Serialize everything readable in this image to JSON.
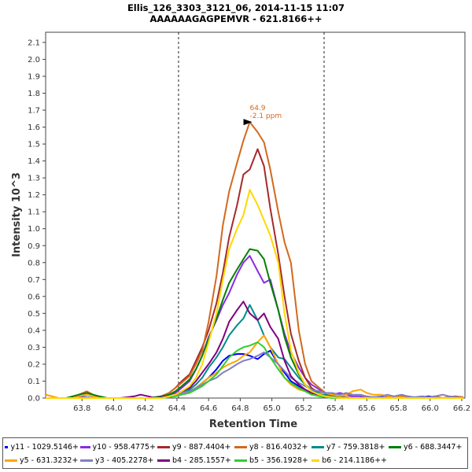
{
  "chart_data": {
    "type": "line",
    "title": "Ellis_126_3303_3121_06, 2014-11-15 11:07",
    "subtitle": "AAAAAAGAGPEMVR - 621.8166++",
    "xlabel": "Retention Time",
    "ylabel": "Intensity 10^3",
    "xlim": [
      63.57,
      66.22
    ],
    "ylim": [
      0,
      2.16
    ],
    "x_ticks": [
      "63.8",
      "64.0",
      "64.2",
      "64.4",
      "64.6",
      "64.8",
      "65.0",
      "65.2",
      "65.4",
      "65.6",
      "65.8",
      "66.0",
      "66.2"
    ],
    "y_ticks": [
      "0.0",
      "0.1",
      "0.2",
      "0.3",
      "0.4",
      "0.5",
      "0.6",
      "0.7",
      "0.8",
      "0.9",
      "1.0",
      "1.1",
      "1.2",
      "1.3",
      "1.4",
      "1.5",
      "1.6",
      "1.7",
      "1.8",
      "1.9",
      "2.0",
      "2.1"
    ],
    "grid": false,
    "legend_position": "bottom",
    "integration_bounds": [
      64.41,
      65.33
    ],
    "annotation": {
      "line1": "64.9",
      "line2": "-2.1 ppm",
      "x": 64.89,
      "y": 1.63
    },
    "x": [
      63.57,
      63.61,
      63.65,
      63.7,
      63.74,
      63.78,
      63.83,
      63.87,
      63.91,
      63.96,
      64.0,
      64.04,
      64.09,
      64.13,
      64.17,
      64.22,
      64.26,
      64.3,
      64.35,
      64.39,
      64.43,
      64.48,
      64.52,
      64.56,
      64.6,
      64.65,
      64.69,
      64.73,
      64.78,
      64.82,
      64.86,
      64.91,
      64.95,
      64.99,
      65.04,
      65.08,
      65.12,
      65.17,
      65.21,
      65.25,
      65.3,
      65.34,
      65.38,
      65.43,
      65.47,
      65.51,
      65.56,
      65.6,
      65.64,
      65.69,
      65.73,
      65.77,
      65.82,
      65.86,
      65.9,
      65.95,
      65.99,
      66.03,
      66.08,
      66.12,
      66.16,
      66.21
    ],
    "series": [
      {
        "name": "y11 - 1029.5146+",
        "color": "#0000ff",
        "values": [
          0,
          0,
          0,
          0,
          0.005,
          0.01,
          0.005,
          0,
          0,
          0,
          0,
          0,
          0,
          0,
          0,
          0,
          0,
          0.005,
          0.01,
          0.02,
          0.03,
          0.04,
          0.06,
          0.09,
          0.12,
          0.17,
          0.22,
          0.25,
          0.26,
          0.26,
          0.25,
          0.23,
          0.26,
          0.28,
          0.2,
          0.15,
          0.1,
          0.07,
          0.05,
          0.03,
          0.02,
          0.015,
          0.01,
          0.005,
          0.005,
          0,
          0,
          0,
          0.005,
          0.005,
          0,
          0,
          0.01,
          0,
          0,
          0.005,
          0.01,
          0.005,
          0,
          0,
          0.005,
          0
        ]
      },
      {
        "name": "y10 - 958.4775+",
        "color": "#8a2be2",
        "values": [
          0,
          0,
          0,
          0,
          0,
          0.01,
          0.005,
          0,
          0,
          0,
          0,
          0,
          0,
          0,
          0,
          0,
          0,
          0.01,
          0.02,
          0.03,
          0.06,
          0.1,
          0.17,
          0.25,
          0.36,
          0.46,
          0.55,
          0.62,
          0.73,
          0.8,
          0.84,
          0.75,
          0.68,
          0.7,
          0.52,
          0.38,
          0.27,
          0.18,
          0.12,
          0.08,
          0.05,
          0.03,
          0.02,
          0.03,
          0.02,
          0.01,
          0.01,
          0,
          0,
          0,
          0.005,
          0.01,
          0,
          0.01,
          0,
          0,
          0,
          0,
          0,
          0.005,
          0.01,
          0
        ]
      },
      {
        "name": "y9 - 887.4404+",
        "color": "#a52a2a",
        "values": [
          0,
          0,
          0,
          0,
          0,
          0,
          0,
          0,
          0,
          0,
          0,
          0,
          0,
          0,
          0,
          0,
          0,
          0.01,
          0.03,
          0.06,
          0.1,
          0.14,
          0.22,
          0.3,
          0.4,
          0.56,
          0.74,
          0.95,
          1.14,
          1.32,
          1.35,
          1.47,
          1.37,
          1.12,
          0.85,
          0.6,
          0.38,
          0.22,
          0.12,
          0.06,
          0.03,
          0.02,
          0.01,
          0.01,
          0.005,
          0,
          0,
          0,
          0,
          0,
          0,
          0.005,
          0,
          0,
          0,
          0,
          0,
          0,
          0,
          0,
          0,
          0
        ]
      },
      {
        "name": "y8 - 816.4032+",
        "color": "#d2691e",
        "values": [
          0.02,
          0.01,
          0,
          0,
          0,
          0.02,
          0.04,
          0.02,
          0,
          0,
          0,
          0,
          0,
          0,
          0,
          0,
          0,
          0.01,
          0.03,
          0.06,
          0.09,
          0.13,
          0.2,
          0.28,
          0.45,
          0.72,
          1.02,
          1.22,
          1.39,
          1.52,
          1.63,
          1.57,
          1.51,
          1.35,
          1.1,
          0.92,
          0.8,
          0.4,
          0.2,
          0.1,
          0.06,
          0.03,
          0.02,
          0.01,
          0.005,
          0,
          0,
          0.005,
          0,
          0,
          0,
          0,
          0.01,
          0,
          0,
          0.005,
          0,
          0.01,
          0,
          0.005,
          0.01,
          0.005
        ]
      },
      {
        "name": "y7 - 759.3818+",
        "color": "#008b8b",
        "values": [
          0,
          0,
          0,
          0,
          0,
          0,
          0.005,
          0,
          0,
          0,
          0,
          0,
          0,
          0,
          0,
          0,
          0,
          0,
          0.01,
          0.02,
          0.03,
          0.05,
          0.08,
          0.12,
          0.18,
          0.24,
          0.3,
          0.37,
          0.43,
          0.47,
          0.55,
          0.46,
          0.37,
          0.3,
          0.24,
          0.23,
          0.18,
          0.12,
          0.08,
          0.05,
          0.03,
          0.02,
          0.01,
          0.005,
          0,
          0,
          0,
          0,
          0,
          0,
          0,
          0,
          0,
          0,
          0,
          0,
          0,
          0,
          0,
          0,
          0,
          0
        ]
      },
      {
        "name": "y6 - 688.3447+",
        "color": "#008000",
        "values": [
          0,
          0,
          0,
          0,
          0.01,
          0.02,
          0.03,
          0.02,
          0.01,
          0,
          0,
          0,
          0,
          0,
          0,
          0,
          0.005,
          0.01,
          0.02,
          0.04,
          0.07,
          0.11,
          0.17,
          0.25,
          0.35,
          0.47,
          0.58,
          0.68,
          0.76,
          0.82,
          0.88,
          0.87,
          0.82,
          0.68,
          0.52,
          0.36,
          0.24,
          0.14,
          0.08,
          0.04,
          0.02,
          0.01,
          0.005,
          0,
          0,
          0,
          0,
          0,
          0,
          0,
          0,
          0,
          0,
          0,
          0,
          0,
          0,
          0,
          0,
          0,
          0,
          0
        ]
      },
      {
        "name": "y5 - 631.3232+",
        "color": "#ffa500",
        "values": [
          0.02,
          0.01,
          0,
          0,
          0,
          0.01,
          0.02,
          0.01,
          0,
          0,
          0,
          0,
          0,
          0,
          0,
          0,
          0,
          0,
          0.01,
          0.01,
          0.02,
          0.04,
          0.06,
          0.09,
          0.12,
          0.15,
          0.18,
          0.2,
          0.22,
          0.25,
          0.27,
          0.33,
          0.37,
          0.3,
          0.2,
          0.12,
          0.08,
          0.05,
          0.04,
          0.03,
          0.025,
          0.03,
          0.02,
          0.01,
          0.02,
          0.04,
          0.05,
          0.03,
          0.02,
          0.02,
          0.01,
          0.005,
          0.005,
          0,
          0,
          0,
          0,
          0,
          0,
          0,
          0,
          0
        ]
      },
      {
        "name": "y3 - 405.2278+",
        "color": "#8080c0",
        "values": [
          0,
          0,
          0,
          0,
          0,
          0,
          0.005,
          0,
          0,
          0,
          0,
          0,
          0,
          0,
          0,
          0,
          0,
          0.005,
          0.01,
          0.02,
          0.03,
          0.04,
          0.06,
          0.08,
          0.1,
          0.12,
          0.15,
          0.17,
          0.2,
          0.22,
          0.23,
          0.25,
          0.27,
          0.24,
          0.2,
          0.16,
          0.12,
          0.09,
          0.07,
          0.05,
          0.04,
          0.03,
          0.03,
          0.02,
          0.03,
          0.02,
          0.02,
          0.01,
          0.005,
          0.01,
          0.02,
          0.01,
          0.02,
          0.01,
          0.005,
          0.01,
          0.005,
          0.01,
          0.02,
          0.01,
          0.005,
          0
        ]
      },
      {
        "name": "b4 - 285.1557+",
        "color": "#800080",
        "values": [
          0,
          0,
          0,
          0,
          0,
          0,
          0,
          0,
          0,
          0,
          0,
          0,
          0.005,
          0.01,
          0.02,
          0.01,
          0,
          0.005,
          0.01,
          0.02,
          0.04,
          0.06,
          0.1,
          0.15,
          0.2,
          0.27,
          0.35,
          0.45,
          0.52,
          0.57,
          0.5,
          0.46,
          0.5,
          0.42,
          0.35,
          0.22,
          0.13,
          0.08,
          0.05,
          0.03,
          0.02,
          0.01,
          0.005,
          0,
          0,
          0,
          0,
          0,
          0,
          0,
          0,
          0,
          0,
          0,
          0,
          0,
          0,
          0,
          0,
          0,
          0,
          0
        ]
      },
      {
        "name": "b5 - 356.1928+",
        "color": "#32cd32",
        "values": [
          0,
          0,
          0,
          0,
          0,
          0,
          0,
          0,
          0,
          0,
          0,
          0,
          0,
          0,
          0,
          0,
          0,
          0,
          0.005,
          0.01,
          0.02,
          0.03,
          0.05,
          0.07,
          0.1,
          0.14,
          0.19,
          0.24,
          0.28,
          0.3,
          0.31,
          0.33,
          0.3,
          0.24,
          0.17,
          0.12,
          0.09,
          0.06,
          0.04,
          0.02,
          0.01,
          0.005,
          0,
          0,
          0,
          0,
          0,
          0,
          0,
          0,
          0,
          0,
          0,
          0,
          0,
          0,
          0,
          0,
          0,
          0,
          0,
          0
        ]
      },
      {
        "name": "b6 - 214.1186++",
        "color": "#ffd700",
        "values": [
          0,
          0,
          0,
          0,
          0,
          0,
          0,
          0,
          0,
          0,
          0,
          0,
          0,
          0,
          0,
          0,
          0,
          0,
          0.01,
          0.02,
          0.04,
          0.07,
          0.12,
          0.2,
          0.33,
          0.5,
          0.7,
          0.88,
          1.0,
          1.08,
          1.23,
          1.14,
          1.05,
          0.96,
          0.8,
          0.5,
          0.28,
          0.15,
          0.08,
          0.04,
          0.02,
          0.01,
          0.005,
          0,
          0,
          0,
          0,
          0,
          0,
          0,
          0,
          0,
          0,
          0,
          0,
          0,
          0,
          0,
          0,
          0,
          0,
          0
        ]
      }
    ]
  }
}
